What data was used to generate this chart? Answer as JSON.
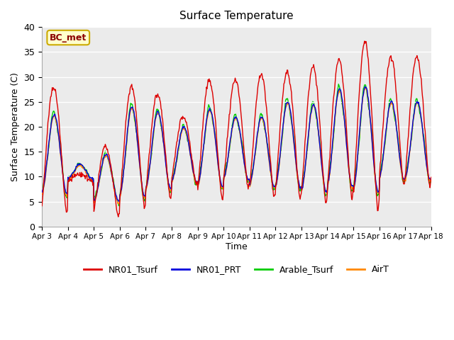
{
  "title": "Surface Temperature",
  "ylabel": "Surface Temperature (C)",
  "xlabel": "Time",
  "annotation": "BC_met",
  "ylim": [
    0,
    40
  ],
  "bg_color": "#ebebeb",
  "series_colors": {
    "NR01_Tsurf": "#dd0000",
    "NR01_PRT": "#0000dd",
    "Arable_Tsurf": "#00cc00",
    "AirT": "#ff8800"
  },
  "xtick_labels": [
    "Apr 3",
    "Apr 4",
    "Apr 5",
    "Apr 6",
    "Apr 7",
    "Apr 8",
    "Apr 9",
    "Apr 10",
    "Apr 11",
    "Apr 12",
    "Apr 13",
    "Apr 14",
    "Apr 15",
    "Apr 16",
    "Apr 17",
    "Apr 18"
  ],
  "ytick_values": [
    0,
    5,
    10,
    15,
    20,
    25,
    30,
    35,
    40
  ],
  "day_peaks_red": [
    28.0,
    10.5,
    16.0,
    28.0,
    26.5,
    22.0,
    29.5,
    29.5,
    30.5,
    31.0,
    32.0,
    33.5,
    37.0,
    34.0
  ],
  "day_mins_red": [
    2.5,
    9.0,
    2.0,
    3.5,
    5.5,
    8.5,
    5.0,
    7.5,
    5.5,
    5.5,
    4.5,
    5.5,
    3.0,
    8.0
  ],
  "day_peaks_grp": [
    22.5,
    12.5,
    14.5,
    24.0,
    23.0,
    20.0,
    23.5,
    22.0,
    22.0,
    25.0,
    24.5,
    27.5,
    28.0,
    25.0
  ],
  "day_mins_grp": [
    6.5,
    9.5,
    5.0,
    6.0,
    7.5,
    9.0,
    8.0,
    9.5,
    8.0,
    8.0,
    7.0,
    8.0,
    7.0,
    9.5
  ]
}
